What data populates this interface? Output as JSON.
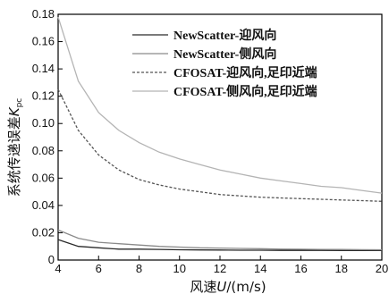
{
  "chart_data": {
    "type": "line",
    "title": "",
    "xlabel": "风速U/(m/s)",
    "ylabel": "系统传递误差K_pc",
    "xlim": [
      4,
      20
    ],
    "ylim": [
      0,
      0.18
    ],
    "x_ticks": [
      4,
      6,
      8,
      10,
      12,
      14,
      16,
      18,
      20
    ],
    "y_ticks": [
      0,
      0.02,
      0.04,
      0.06,
      0.08,
      0.1,
      0.12,
      0.14,
      0.16,
      0.18
    ],
    "x_tick_labels": [
      "4",
      "6",
      "8",
      "10",
      "12",
      "14",
      "16",
      "18",
      "20"
    ],
    "y_tick_labels": [
      "0",
      "0.02",
      "0.04",
      "0.06",
      "0.08",
      "0.10",
      "0.12",
      "0.14",
      "0.16",
      "0.18"
    ],
    "grid": false,
    "legend_position": "top-right",
    "x": [
      4,
      5,
      6,
      7,
      8,
      9,
      10,
      11,
      12,
      13,
      14,
      15,
      16,
      17,
      18,
      19,
      20
    ],
    "series": [
      {
        "name": "NewScatter-迎风向",
        "style": "solid",
        "color": "#2a2a2a",
        "values": [
          0.015,
          0.01,
          0.009,
          0.008,
          0.008,
          0.0078,
          0.0075,
          0.0074,
          0.0073,
          0.0072,
          0.0072,
          0.0071,
          0.0071,
          0.0071,
          0.007,
          0.007,
          0.007
        ]
      },
      {
        "name": "NewScatter-侧风向",
        "style": "solid",
        "color": "#8a8a8a",
        "values": [
          0.022,
          0.016,
          0.013,
          0.012,
          0.011,
          0.01,
          0.0095,
          0.009,
          0.0088,
          0.0085,
          0.0083,
          0.008,
          0.0079,
          0.0078,
          0.0077,
          0.0076,
          0.0075
        ]
      },
      {
        "name": "CFOSAT-迎风向,足印近端",
        "style": "dashed",
        "color": "#555555",
        "values": [
          0.125,
          0.095,
          0.077,
          0.066,
          0.059,
          0.055,
          0.052,
          0.05,
          0.048,
          0.047,
          0.046,
          0.0455,
          0.045,
          0.0445,
          0.044,
          0.0435,
          0.043
        ]
      },
      {
        "name": "CFOSAT-侧风向,足印近端",
        "style": "solid",
        "color": "#b4b4b4",
        "values": [
          0.178,
          0.131,
          0.108,
          0.095,
          0.086,
          0.079,
          0.074,
          0.07,
          0.066,
          0.063,
          0.06,
          0.058,
          0.056,
          0.054,
          0.053,
          0.051,
          0.049
        ]
      }
    ]
  }
}
